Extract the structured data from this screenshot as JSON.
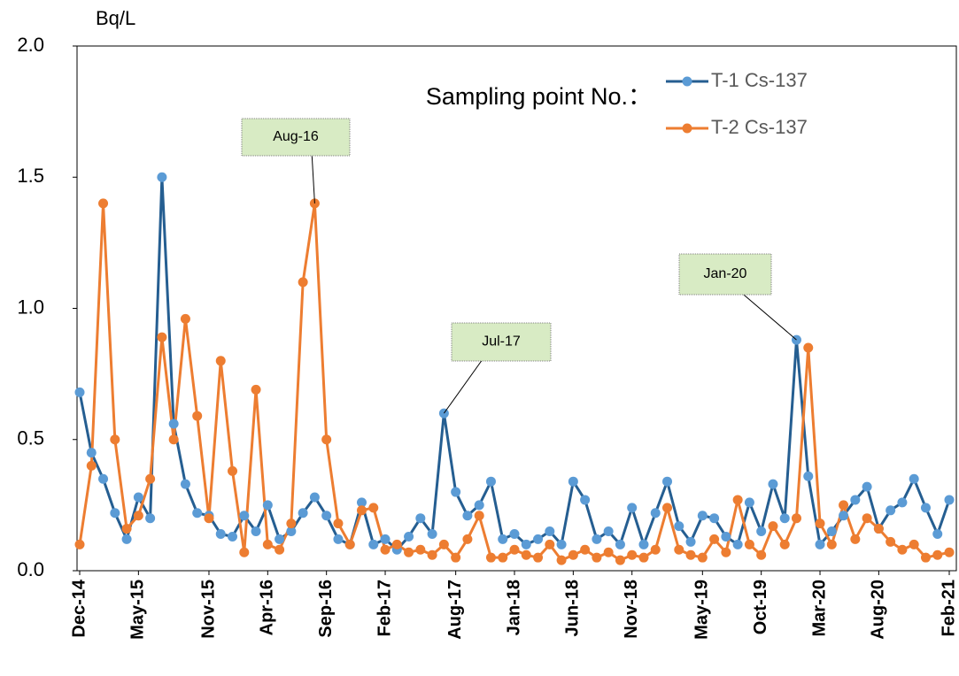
{
  "chart_data": {
    "type": "line",
    "y_label": "Bq/L",
    "legend_title": "Sampling point No.：",
    "legend_position": "upper right",
    "x": [
      "Dec-14",
      "Jan-15",
      "Feb-15",
      "Mar-15",
      "Apr-15",
      "May-15",
      "Jun-15",
      "Jul-15",
      "Aug-15",
      "Sep-15",
      "Oct-15",
      "Nov-15",
      "Dec-15",
      "Jan-16",
      "Feb-16",
      "Mar-16",
      "Apr-16",
      "May-16",
      "Jun-16",
      "Jul-16",
      "Aug-16",
      "Sep-16",
      "Oct-16",
      "Nov-16",
      "Dec-16",
      "Jan-17",
      "Feb-17",
      "Mar-17",
      "Apr-17",
      "May-17",
      "Jun-17",
      "Jul-17",
      "Aug-17",
      "Sep-17",
      "Oct-17",
      "Nov-17",
      "Dec-17",
      "Jan-18",
      "Feb-18",
      "Mar-18",
      "Apr-18",
      "May-18",
      "Jun-18",
      "Jul-18",
      "Aug-18",
      "Sep-18",
      "Oct-18",
      "Nov-18",
      "Dec-18",
      "Jan-19",
      "Feb-19",
      "Mar-19",
      "Apr-19",
      "May-19",
      "Jun-19",
      "Jul-19",
      "Aug-19",
      "Sep-19",
      "Oct-19",
      "Nov-19",
      "Dec-19",
      "Jan-20",
      "Feb-20",
      "Mar-20",
      "Apr-20",
      "May-20",
      "Jun-20",
      "Jul-20",
      "Aug-20",
      "Sep-20",
      "Oct-20",
      "Nov-20",
      "Dec-20",
      "Jan-21",
      "Feb-21"
    ],
    "xticks": [
      "Dec-14",
      "May-15",
      "Nov-15",
      "Apr-16",
      "Sep-16",
      "Feb-17",
      "Aug-17",
      "Jan-18",
      "Jun-18",
      "Nov-18",
      "May-19",
      "Oct-19",
      "Mar-20",
      "Aug-20",
      "Feb-21"
    ],
    "ylim": [
      0,
      2
    ],
    "yticks": [
      {
        "value": 0,
        "label": "0.0"
      },
      {
        "value": 0.5,
        "label": "0.5"
      },
      {
        "value": 1,
        "label": "1.0"
      },
      {
        "value": 1.5,
        "label": "1.5"
      },
      {
        "value": 2,
        "label": "2.0"
      }
    ],
    "grid": false,
    "series": [
      {
        "name": "T-1 Cs-137",
        "color": "#255e91",
        "marker_color": "#5b9bd5",
        "values": [
          0.68,
          0.45,
          0.35,
          0.22,
          0.12,
          0.28,
          0.2,
          1.5,
          0.56,
          0.33,
          0.22,
          0.21,
          0.14,
          0.13,
          0.21,
          0.15,
          0.25,
          0.12,
          0.15,
          0.22,
          0.28,
          0.21,
          0.12,
          0.1,
          0.26,
          0.1,
          0.12,
          0.08,
          0.13,
          0.2,
          0.14,
          0.6,
          0.3,
          0.21,
          0.25,
          0.34,
          0.12,
          0.14,
          0.1,
          0.12,
          0.15,
          0.1,
          0.34,
          0.27,
          0.12,
          0.15,
          0.1,
          0.24,
          0.1,
          0.22,
          0.34,
          0.17,
          0.11,
          0.21,
          0.2,
          0.13,
          0.1,
          0.26,
          0.15,
          0.33,
          0.2,
          0.88,
          0.36,
          0.1,
          0.15,
          0.21,
          0.27,
          0.32,
          0.16,
          0.23,
          0.26,
          0.35,
          0.24,
          0.14,
          0.27
        ]
      },
      {
        "name": "T-2 Cs-137",
        "color": "#ed7d31",
        "marker_color": "#ed7d31",
        "values": [
          0.1,
          0.4,
          1.4,
          0.5,
          0.16,
          0.21,
          0.35,
          0.89,
          0.5,
          0.96,
          0.59,
          0.2,
          0.8,
          0.38,
          0.07,
          0.69,
          0.1,
          0.08,
          0.18,
          1.1,
          1.4,
          0.5,
          0.18,
          0.1,
          0.23,
          0.24,
          0.08,
          0.1,
          0.07,
          0.08,
          0.06,
          0.1,
          0.05,
          0.12,
          0.21,
          0.05,
          0.05,
          0.08,
          0.06,
          0.05,
          0.1,
          0.04,
          0.06,
          0.08,
          0.05,
          0.07,
          0.04,
          0.06,
          0.05,
          0.08,
          0.24,
          0.08,
          0.06,
          0.05,
          0.12,
          0.07,
          0.27,
          0.1,
          0.06,
          0.17,
          0.1,
          0.2,
          0.85,
          0.18,
          0.1,
          0.25,
          0.12,
          0.2,
          0.16,
          0.11,
          0.08,
          0.1,
          0.05,
          0.06,
          0.07
        ]
      }
    ],
    "annotations": [
      "Aug-16",
      "Jul-17",
      "Jan-20"
    ]
  }
}
